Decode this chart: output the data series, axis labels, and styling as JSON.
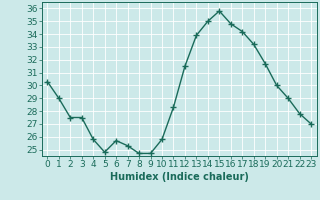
{
  "x": [
    0,
    1,
    2,
    3,
    4,
    5,
    6,
    7,
    8,
    9,
    10,
    11,
    12,
    13,
    14,
    15,
    16,
    17,
    18,
    19,
    20,
    21,
    22,
    23
  ],
  "y": [
    30.3,
    29.0,
    27.5,
    27.5,
    25.8,
    24.8,
    25.7,
    25.3,
    24.7,
    24.7,
    25.8,
    28.3,
    31.5,
    33.9,
    35.0,
    35.8,
    34.8,
    34.2,
    33.2,
    31.7,
    30.0,
    29.0,
    27.8,
    27.0
  ],
  "line_color": "#1a6b5a",
  "marker": "+",
  "marker_size": 4,
  "linewidth": 1.0,
  "xlabel": "Humidex (Indice chaleur)",
  "xlim": [
    -0.5,
    23.5
  ],
  "ylim": [
    24.5,
    36.5
  ],
  "yticks": [
    25,
    26,
    27,
    28,
    29,
    30,
    31,
    32,
    33,
    34,
    35,
    36
  ],
  "xticks": [
    0,
    1,
    2,
    3,
    4,
    5,
    6,
    7,
    8,
    9,
    10,
    11,
    12,
    13,
    14,
    15,
    16,
    17,
    18,
    19,
    20,
    21,
    22,
    23
  ],
  "bg_color": "#cce9e9",
  "grid_color": "#ffffff",
  "tick_color": "#1a6b5a",
  "label_color": "#1a6b5a",
  "font_size": 6.5
}
